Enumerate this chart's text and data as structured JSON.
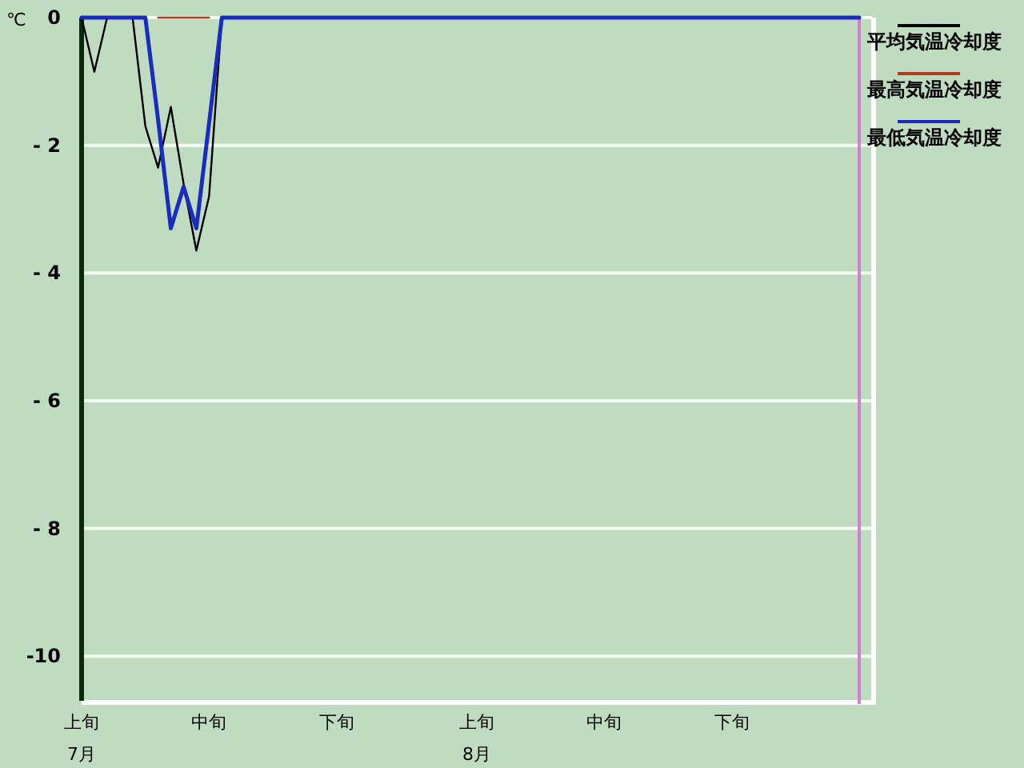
{
  "chart_data": {
    "type": "line",
    "ylabel": "℃",
    "x": [
      "--07-01",
      "--07-02",
      "--07-03",
      "--07-04",
      "--07-05",
      "--07-06",
      "--07-07",
      "--07-08",
      "--07-09",
      "--07-10",
      "--07-11",
      "--07-12",
      "--07-13",
      "--07-14",
      "--07-15",
      "--07-16",
      "--07-17",
      "--07-18",
      "--07-19",
      "--07-20",
      "--07-21",
      "--07-22",
      "--07-23",
      "--07-24",
      "--07-25",
      "--07-26",
      "--07-27",
      "--07-28",
      "--07-29",
      "--07-30",
      "--07-31",
      "--08-01",
      "--08-02",
      "--08-03",
      "--08-04",
      "--08-05",
      "--08-06",
      "--08-07",
      "--08-08",
      "--08-09",
      "--08-10",
      "--08-11",
      "--08-12",
      "--08-13",
      "--08-14",
      "--08-15",
      "--08-16",
      "--08-17",
      "--08-18",
      "--08-19",
      "--08-20",
      "--08-21",
      "--08-22",
      "--08-23",
      "--08-24",
      "--08-25",
      "--08-26",
      "--08-27",
      "--08-28",
      "--08-29",
      "--08-30",
      "--08-31"
    ],
    "series": [
      {
        "name": "平均気温冷却度",
        "color": "#000000",
        "values": [
          0,
          -0.85,
          0,
          null,
          0,
          -1.7,
          -2.35,
          -1.4,
          -2.6,
          -3.65,
          -2.8,
          0,
          null,
          null,
          null,
          null,
          null,
          null,
          null,
          null,
          null,
          null,
          null,
          null,
          null,
          null,
          null,
          null,
          null,
          null,
          null,
          null,
          null,
          null,
          null,
          null,
          null,
          null,
          null,
          null,
          null,
          null,
          null,
          null,
          null,
          null,
          null,
          null,
          null,
          null,
          null,
          null,
          null,
          null,
          null,
          null,
          null,
          null,
          null,
          null,
          null,
          null
        ]
      },
      {
        "name": "最高気温冷却度",
        "color": "#b03a20",
        "values": [
          null,
          null,
          null,
          null,
          null,
          null,
          0,
          0,
          0,
          0,
          0,
          null,
          null,
          null,
          null,
          null,
          null,
          null,
          null,
          null,
          null,
          null,
          null,
          null,
          null,
          null,
          null,
          null,
          null,
          null,
          null,
          null,
          null,
          null,
          null,
          null,
          null,
          null,
          null,
          null,
          null,
          null,
          null,
          null,
          null,
          null,
          null,
          null,
          null,
          null,
          null,
          null,
          null,
          null,
          null,
          null,
          null,
          null,
          null,
          null,
          null,
          null
        ]
      },
      {
        "name": "最低気温冷却度",
        "color": "#1a2cc0",
        "values": [
          0,
          0,
          0,
          0,
          0,
          0,
          -1.6,
          -3.3,
          -2.65,
          -3.3,
          -1.65,
          0,
          0,
          0,
          0,
          0,
          0,
          0,
          0,
          0,
          0,
          0,
          0,
          0,
          0,
          0,
          0,
          0,
          0,
          0,
          0,
          0,
          0,
          0,
          0,
          0,
          0,
          0,
          0,
          0,
          0,
          0,
          0,
          0,
          0,
          0,
          0,
          0,
          0,
          0,
          0,
          0,
          0,
          0,
          0,
          0,
          0,
          0,
          0,
          0,
          0,
          0
        ]
      }
    ],
    "xlim": [
      "--07-01",
      "--09-01"
    ],
    "xticks": [
      {
        "value": "--07-01",
        "label": "上旬\n7月"
      },
      {
        "value": "--07-11",
        "label": "中旬"
      },
      {
        "value": "--07-21",
        "label": "下旬"
      },
      {
        "value": "--08-01",
        "label": "上旬\n8月"
      },
      {
        "value": "--08-11",
        "label": "中旬"
      },
      {
        "value": "--08-21",
        "label": "下旬"
      }
    ],
    "ylim": [
      -10.7,
      0
    ],
    "yticks": [
      0,
      {
        "value": -2,
        "label": "- 2"
      },
      {
        "value": -4,
        "label": "- 4"
      },
      {
        "value": -6,
        "label": "- 6"
      },
      {
        "value": -8,
        "label": "- 8"
      },
      -10
    ],
    "grid": "y",
    "legend": "right",
    "ref_lines": [
      {
        "axis": "x",
        "value": "--08-31",
        "color": "#d080d0"
      }
    ]
  }
}
